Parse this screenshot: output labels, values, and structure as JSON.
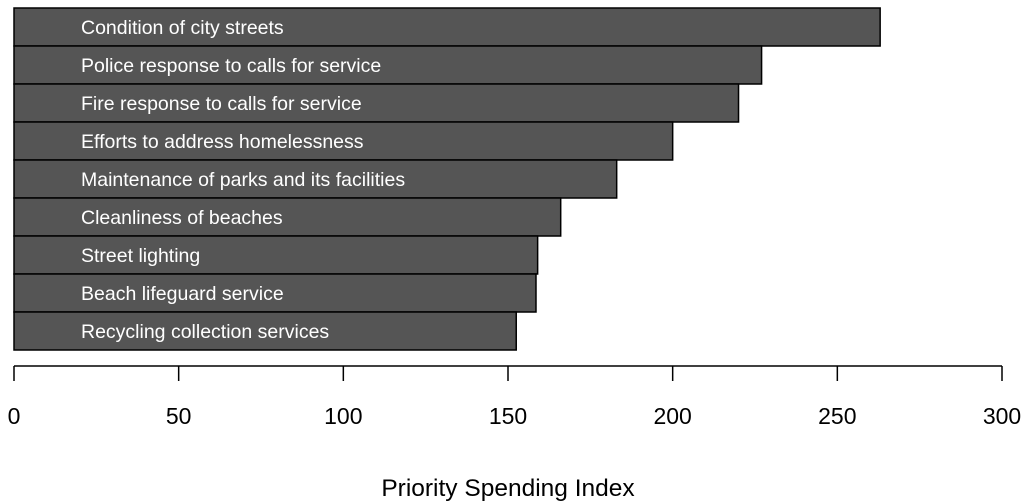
{
  "chart_data": {
    "type": "bar",
    "orientation": "horizontal",
    "categories": [
      "Condition of city streets",
      "Police response to calls for service",
      "Fire response to calls for service",
      "Efforts to address homelessness",
      "Maintenance of parks and its facilities",
      "Cleanliness of beaches",
      "Street lighting",
      "Beach lifeguard service",
      "Recycling collection services"
    ],
    "values": [
      263,
      227,
      220,
      200,
      183,
      166,
      159,
      158.5,
      152.5
    ],
    "xlabel": "Priority Spending Index",
    "xlim": [
      0,
      300
    ],
    "xticks": [
      0,
      50,
      100,
      150,
      200,
      250,
      300
    ],
    "bar_color": "#555555",
    "label_color": "#ffffff",
    "grid": false,
    "legend": "none"
  }
}
